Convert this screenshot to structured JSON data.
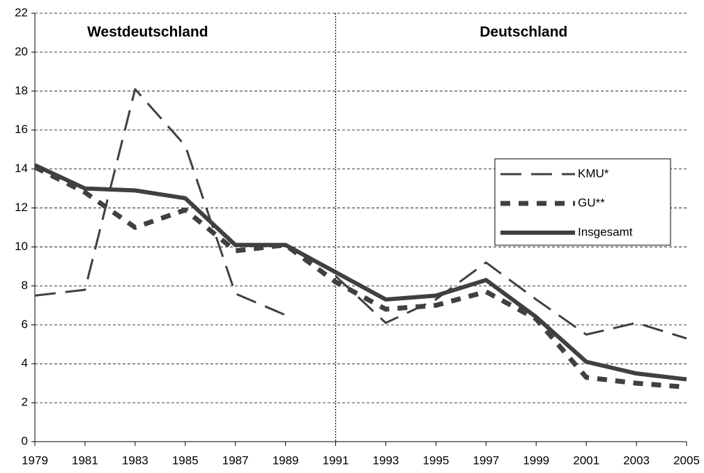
{
  "chart_data": {
    "type": "line",
    "annotations": [
      {
        "text": "Westdeutschland",
        "x": 1983.5,
        "y": 21.0
      },
      {
        "text": "Deutschland",
        "x": 1998.5,
        "y": 21.0
      }
    ],
    "divider_x": 1991,
    "x": [
      1979,
      1981,
      1983,
      1985,
      1987,
      1989,
      1991,
      1993,
      1995,
      1997,
      1999,
      2001,
      2003,
      2005
    ],
    "series": [
      {
        "name": "KMU*",
        "color": "#404040",
        "style": "long-dash",
        "x": [
          1979,
          1981,
          1983,
          1985,
          1987,
          1989,
          null,
          1991,
          1993,
          1995,
          1997,
          1999,
          2001,
          2003,
          2005
        ],
        "values": [
          7.5,
          7.8,
          18.1,
          15.2,
          7.6,
          6.5,
          null,
          8.5,
          6.1,
          7.3,
          9.2,
          7.3,
          5.5,
          6.1,
          5.3
        ]
      },
      {
        "name": "GU**",
        "color": "#404040",
        "style": "short-dash",
        "values": [
          14.1,
          12.8,
          11.0,
          11.9,
          9.8,
          10.1,
          8.2,
          6.8,
          7.0,
          7.7,
          6.3,
          3.3,
          3.0,
          2.8
        ]
      },
      {
        "name": "Insgesamt",
        "color": "#404040",
        "style": "solid",
        "values": [
          14.2,
          13.0,
          12.9,
          12.5,
          10.1,
          10.1,
          8.7,
          7.3,
          7.5,
          8.3,
          6.4,
          4.1,
          3.5,
          3.2
        ]
      }
    ],
    "xlim": [
      1979,
      2005
    ],
    "xticks": [
      1979,
      1981,
      1983,
      1985,
      1987,
      1989,
      1991,
      1993,
      1995,
      1997,
      1999,
      2001,
      2003,
      2005
    ],
    "ylim": [
      0,
      22
    ],
    "yticks": [
      0,
      2,
      4,
      6,
      8,
      10,
      12,
      14,
      16,
      18,
      20,
      22
    ],
    "grid": true,
    "legend": "right"
  }
}
